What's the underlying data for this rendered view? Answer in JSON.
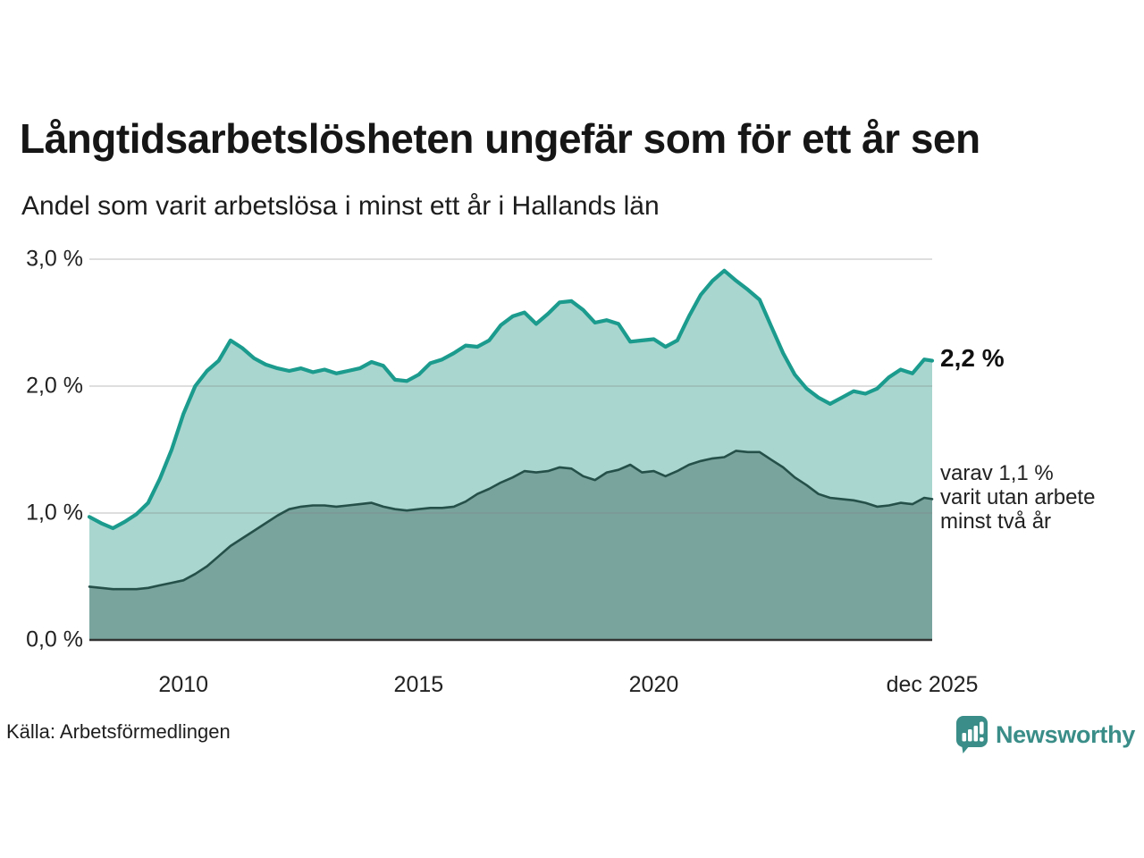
{
  "header": {
    "title": "Långtidsarbetslösheten ungefär som för ett år sen",
    "subtitle": "Andel som varit arbetslösa i minst ett år i Hallands län"
  },
  "footer": {
    "source": "Källa: Arbetsförmedlingen",
    "logo_text": "Newsworthy"
  },
  "colors": {
    "brand_teal": "#3a8d88",
    "line_total": "#1b9b8d",
    "fill_total": "#a9d6cf",
    "line_two_years": "#25504a",
    "fill_two_years": "#79a49e",
    "gridline": "rgba(130,130,130,0.35)",
    "baseline": "#333333",
    "text": "#1a1a1a"
  },
  "annotations": {
    "latest_total": "2,2 %",
    "secondary": "varav 1,1 %\nvarit utan arbete\nminst två år"
  },
  "chart_data": {
    "type": "area",
    "title": "Långtidsarbetslösheten ungefär som för ett år sen",
    "subtitle": "Andel som varit arbetslösa i minst ett år i Hallands län",
    "xlabel": "",
    "ylabel": "",
    "xlim": [
      2008.0,
      2025.92
    ],
    "ylim": [
      0.0,
      3.0
    ],
    "grid": true,
    "legend_position": "none",
    "y_ticks": [
      {
        "value": 0.0,
        "label": "0,0 %"
      },
      {
        "value": 1.0,
        "label": "1,0 %"
      },
      {
        "value": 2.0,
        "label": "2,0 %"
      },
      {
        "value": 3.0,
        "label": "3,0 %"
      }
    ],
    "x_ticks": [
      {
        "value": 2010,
        "label": "2010"
      },
      {
        "value": 2015,
        "label": "2015"
      },
      {
        "value": 2020,
        "label": "2020"
      },
      {
        "value": 2025.92,
        "label": "dec 2025"
      }
    ],
    "x": [
      2008.0,
      2008.25,
      2008.5,
      2008.75,
      2009.0,
      2009.25,
      2009.5,
      2009.75,
      2010.0,
      2010.25,
      2010.5,
      2010.75,
      2011.0,
      2011.25,
      2011.5,
      2011.75,
      2012.0,
      2012.25,
      2012.5,
      2012.75,
      2013.0,
      2013.25,
      2013.5,
      2013.75,
      2014.0,
      2014.25,
      2014.5,
      2014.75,
      2015.0,
      2015.25,
      2015.5,
      2015.75,
      2016.0,
      2016.25,
      2016.5,
      2016.75,
      2017.0,
      2017.25,
      2017.5,
      2017.75,
      2018.0,
      2018.25,
      2018.5,
      2018.75,
      2019.0,
      2019.25,
      2019.5,
      2019.75,
      2020.0,
      2020.25,
      2020.5,
      2020.75,
      2021.0,
      2021.25,
      2021.5,
      2021.75,
      2022.0,
      2022.25,
      2022.5,
      2022.75,
      2023.0,
      2023.25,
      2023.5,
      2023.75,
      2024.0,
      2024.25,
      2024.5,
      2024.75,
      2025.0,
      2025.25,
      2025.5,
      2025.75,
      2025.92
    ],
    "series": [
      {
        "name": "Andel arbetslösa minst ett år",
        "values": [
          0.97,
          0.92,
          0.88,
          0.93,
          0.99,
          1.08,
          1.27,
          1.5,
          1.78,
          2.0,
          2.12,
          2.2,
          2.36,
          2.3,
          2.22,
          2.17,
          2.14,
          2.12,
          2.14,
          2.11,
          2.13,
          2.1,
          2.12,
          2.14,
          2.19,
          2.16,
          2.05,
          2.04,
          2.09,
          2.18,
          2.21,
          2.26,
          2.32,
          2.31,
          2.36,
          2.48,
          2.55,
          2.58,
          2.49,
          2.57,
          2.66,
          2.67,
          2.6,
          2.5,
          2.52,
          2.49,
          2.35,
          2.36,
          2.37,
          2.31,
          2.36,
          2.55,
          2.72,
          2.83,
          2.91,
          2.83,
          2.76,
          2.68,
          2.47,
          2.26,
          2.09,
          1.98,
          1.91,
          1.86,
          1.91,
          1.96,
          1.94,
          1.98,
          2.07,
          2.13,
          2.1,
          2.21,
          2.2
        ]
      },
      {
        "name": "varav utan arbete minst två år",
        "values": [
          0.42,
          0.41,
          0.4,
          0.4,
          0.4,
          0.41,
          0.43,
          0.45,
          0.47,
          0.52,
          0.58,
          0.66,
          0.74,
          0.8,
          0.86,
          0.92,
          0.98,
          1.03,
          1.05,
          1.06,
          1.06,
          1.05,
          1.06,
          1.07,
          1.08,
          1.05,
          1.03,
          1.02,
          1.03,
          1.04,
          1.04,
          1.05,
          1.09,
          1.15,
          1.19,
          1.24,
          1.28,
          1.33,
          1.32,
          1.33,
          1.36,
          1.35,
          1.29,
          1.26,
          1.32,
          1.34,
          1.38,
          1.32,
          1.33,
          1.29,
          1.33,
          1.38,
          1.41,
          1.43,
          1.44,
          1.49,
          1.48,
          1.48,
          1.42,
          1.36,
          1.28,
          1.22,
          1.15,
          1.12,
          1.11,
          1.1,
          1.08,
          1.05,
          1.06,
          1.08,
          1.07,
          1.12,
          1.11
        ]
      }
    ],
    "annotations": [
      {
        "text": "2,2 %",
        "series": 0,
        "at": "end"
      },
      {
        "text": "varav 1,1 % varit utan arbete minst två år",
        "series": 1,
        "at": "end"
      }
    ]
  }
}
